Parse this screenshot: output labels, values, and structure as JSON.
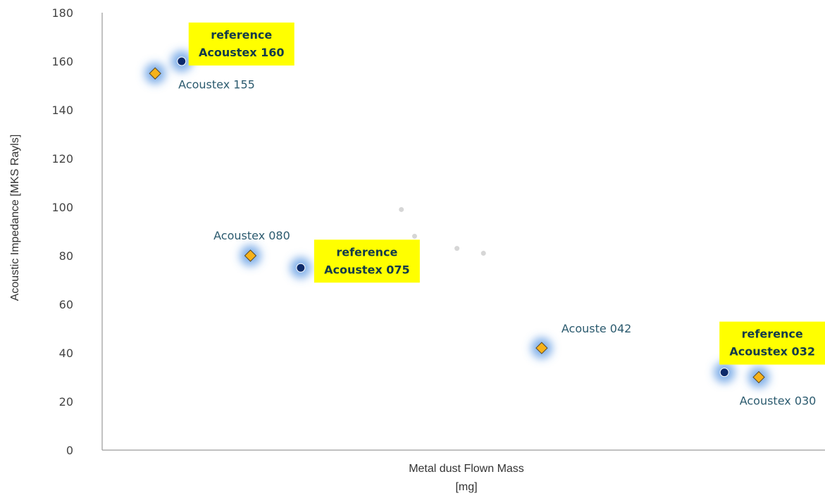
{
  "chart_data": {
    "type": "scatter",
    "title": "",
    "xlabel": "Metal dust Flown Mass",
    "xlabel_unit": "[mg]",
    "ylabel": "Acoustic Impedance [MKS Rayls]",
    "ylim": [
      0,
      180
    ],
    "yticks": [
      "0",
      "20",
      "40",
      "60",
      "80",
      "100",
      "120",
      "140",
      "160",
      "180"
    ],
    "grid": false,
    "legend": "none",
    "x_ticks_shown": false,
    "series": [
      {
        "marker": "circle",
        "color": "#0c2a6b",
        "points": [
          {
            "x": 3.0,
            "y": 160
          },
          {
            "x": 7.5,
            "y": 75
          },
          {
            "x": 23.5,
            "y": 32
          }
        ]
      },
      {
        "marker": "diamond",
        "color": "#f6b21a",
        "points": [
          {
            "x": 2.0,
            "y": 155
          },
          {
            "x": 5.6,
            "y": 80
          },
          {
            "x": 16.6,
            "y": 42
          },
          {
            "x": 24.8,
            "y": 30
          }
        ]
      },
      {
        "marker": "faint-dot",
        "color": "#d6d6d6",
        "points": [
          {
            "x": 11.3,
            "y": 99
          },
          {
            "x": 11.8,
            "y": 88
          },
          {
            "x": 13.4,
            "y": 83
          },
          {
            "x": 14.4,
            "y": 81
          }
        ]
      }
    ],
    "annotations": [
      {
        "text": "Acoustex 155",
        "style": "plain",
        "x": 2.0,
        "y": 155
      },
      {
        "text": "Acoustex 080",
        "style": "plain",
        "x": 5.6,
        "y": 80
      },
      {
        "text": "Acouste 042",
        "style": "plain",
        "x": 16.6,
        "y": 42
      },
      {
        "text": "Acoustex 030",
        "style": "plain",
        "x": 24.8,
        "y": 30
      },
      {
        "lines": [
          "reference",
          "Acoustex 160"
        ],
        "style": "highlight",
        "x": 3.0,
        "y": 160
      },
      {
        "lines": [
          "reference",
          "Acoustex 075"
        ],
        "style": "highlight",
        "x": 7.5,
        "y": 75
      },
      {
        "lines": [
          "reference",
          "Acoustex 032"
        ],
        "style": "highlight",
        "x": 23.5,
        "y": 32
      }
    ],
    "colors": {
      "highlight_box": "#ffff00",
      "glow": "#4d8fe0",
      "axis": "#9a9a9a"
    }
  }
}
